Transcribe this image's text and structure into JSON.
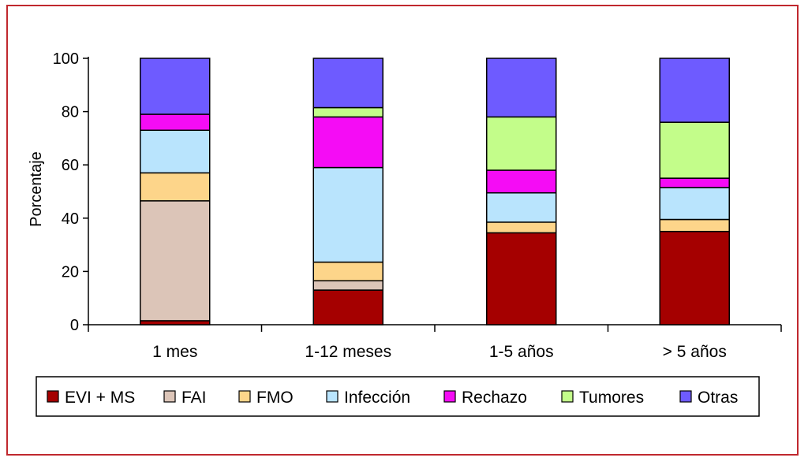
{
  "chart_data": {
    "type": "stacked-bar",
    "ylabel": "Porcentaje",
    "xlabel": "",
    "ylim": [
      0,
      100
    ],
    "yticks": [
      0,
      20,
      40,
      60,
      80,
      100
    ],
    "categories": [
      "1 mes",
      "1-12 meses",
      "1-5 años",
      "> 5 años"
    ],
    "series": [
      {
        "name": "EVI + MS",
        "color": "#a50000",
        "values": [
          1.5,
          13,
          34.5,
          35
        ]
      },
      {
        "name": "FAI",
        "color": "#dcc5b8",
        "values": [
          45,
          3.5,
          0,
          0
        ]
      },
      {
        "name": "FMO",
        "color": "#fdd58a",
        "values": [
          10.5,
          7,
          4,
          4.5
        ]
      },
      {
        "name": "Infección",
        "color": "#b9e4fd",
        "values": [
          16,
          35.5,
          11,
          12
        ]
      },
      {
        "name": "Rechazo",
        "color": "#f50cf5",
        "values": [
          6,
          19,
          8.5,
          3.5
        ]
      },
      {
        "name": "Tumores",
        "color": "#c3fd8a",
        "values": [
          0,
          3.5,
          20,
          21
        ]
      },
      {
        "name": "Otras",
        "color": "#6e5bff",
        "values": [
          21,
          18.5,
          22,
          24
        ]
      }
    ],
    "legend_position": "bottom",
    "grid": false
  }
}
